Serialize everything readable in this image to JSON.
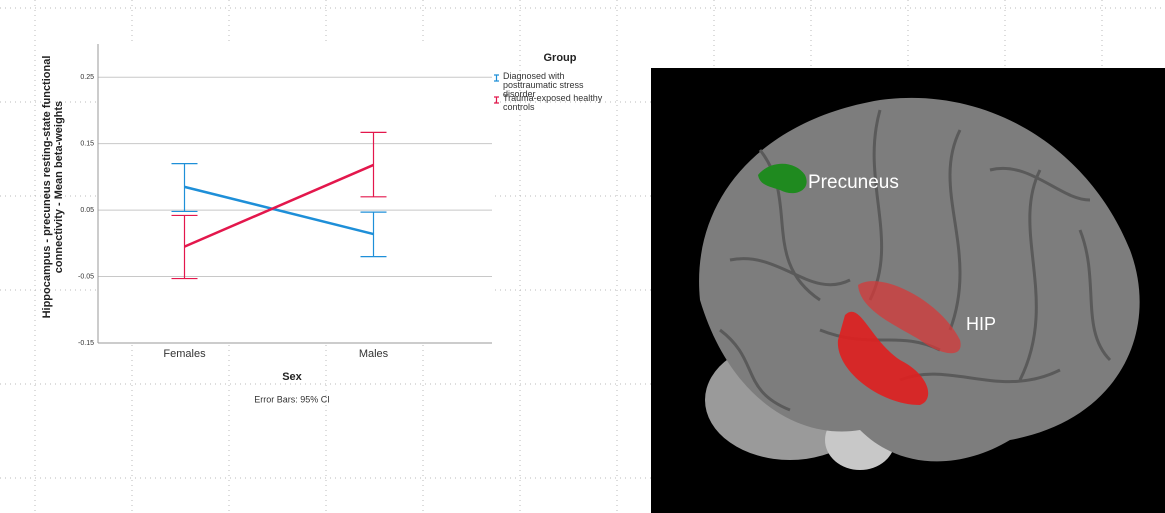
{
  "chart_data": {
    "type": "line",
    "title": "Group",
    "y_label": "Hippocampus - precuneus resting-state functional connectivity - Mean beta-weights",
    "x_label": "Sex",
    "note": "Error Bars: 95% CI",
    "categories": [
      "Females",
      "Males"
    ],
    "series": [
      {
        "name": "Diagnosed with posttraumatic stress disorder",
        "color": "#1e8fd8",
        "values": [
          0.085,
          0.014
        ],
        "ci_lower": [
          0.048,
          -0.02
        ],
        "ci_upper": [
          0.12,
          0.047
        ]
      },
      {
        "name": "Trauma-exposed healthy controls",
        "color": "#e3174c",
        "values": [
          -0.005,
          0.118
        ],
        "ci_lower": [
          -0.053,
          0.07
        ],
        "ci_upper": [
          0.042,
          0.167
        ]
      }
    ],
    "ylim": [
      -0.15,
      0.3
    ],
    "yticks": [
      -0.15,
      -0.05,
      0.05,
      0.15,
      0.25
    ],
    "grid": true
  },
  "image_labels": [
    "Precuneus",
    "HIP"
  ]
}
